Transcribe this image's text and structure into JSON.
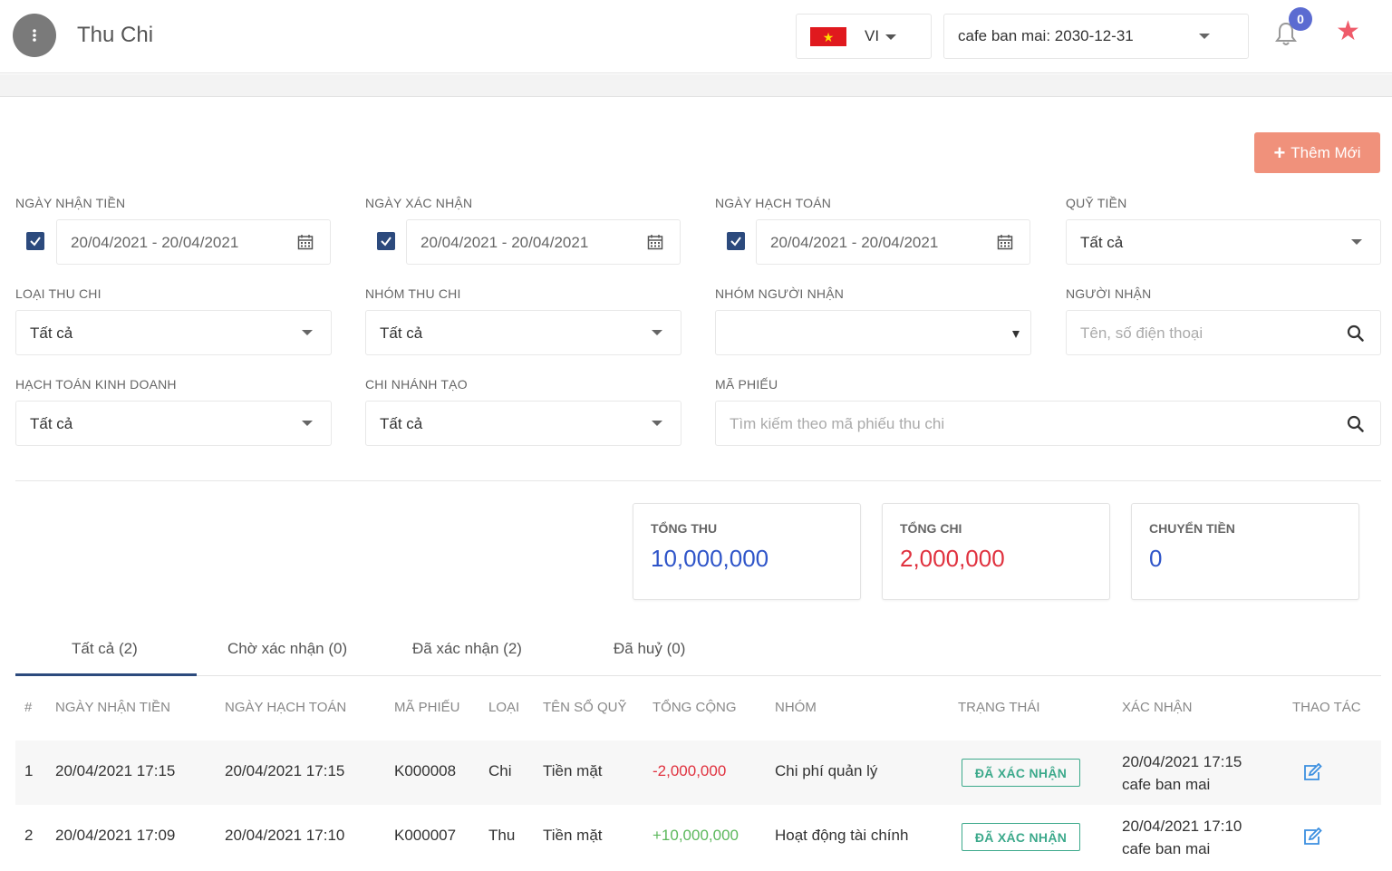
{
  "header": {
    "title": "Thu Chi",
    "lang": "VI",
    "store": "cafe ban mai: 2030-12-31",
    "notifications": "0"
  },
  "actions": {
    "add_label": "Thêm Mới"
  },
  "filters": {
    "ngay_nhan_tien": {
      "label": "NGÀY NHẬN TIỀN",
      "value": "20/04/2021 - 20/04/2021",
      "checked": true
    },
    "ngay_xac_nhan": {
      "label": "NGÀY XÁC NHẬN",
      "value": "20/04/2021 - 20/04/2021",
      "checked": true
    },
    "ngay_hach_toan": {
      "label": "NGÀY HẠCH TOÁN",
      "value": "20/04/2021 - 20/04/2021",
      "checked": true
    },
    "quy_tien": {
      "label": "QUỸ TIỀN",
      "value": "Tất cả"
    },
    "loai_thu_chi": {
      "label": "LOẠI THU CHI",
      "value": "Tất cả"
    },
    "nhom_thu_chi": {
      "label": "NHÓM THU CHI",
      "value": "Tất cả"
    },
    "nhom_nguoi_nhan": {
      "label": "NHÓM NGƯỜI NHẬN",
      "value": ""
    },
    "nguoi_nhan": {
      "label": "NGƯỜI NHẬN",
      "placeholder": "Tên, số điện thoại"
    },
    "hach_toan_kinh_doanh": {
      "label": "HẠCH TOÁN KINH DOANH",
      "value": "Tất cả"
    },
    "chi_nhanh_tao": {
      "label": "CHI NHÁNH TẠO",
      "value": "Tất cả"
    },
    "ma_phieu": {
      "label": "MÃ PHIẾU",
      "placeholder": "Tìm kiếm theo mã phiếu thu chi"
    }
  },
  "summary": {
    "tong_thu": {
      "label": "TỔNG THU",
      "value": "10,000,000",
      "color": "#2f55c9"
    },
    "tong_chi": {
      "label": "TỔNG CHI",
      "value": "2,000,000",
      "color": "#e0323f"
    },
    "chuyen_tien": {
      "label": "CHUYỂN TIỀN",
      "value": "0",
      "color": "#2f55c9"
    }
  },
  "tabs": [
    {
      "label": "Tất cả (2)",
      "active": true
    },
    {
      "label": "Chờ xác nhận (0)",
      "active": false
    },
    {
      "label": "Đã xác nhận (2)",
      "active": false
    },
    {
      "label": "Đã huỷ (0)",
      "active": false
    }
  ],
  "table": {
    "columns": [
      "#",
      "NGÀY NHẬN TIỀN",
      "NGÀY HẠCH TOÁN",
      "MÃ PHIẾU",
      "LOẠI",
      "TÊN SỔ QUỸ",
      "TỔNG CỘNG",
      "NHÓM",
      "TRẠNG THÁI",
      "XÁC NHẬN",
      "THAO TÁC"
    ],
    "rows": [
      {
        "idx": "1",
        "ngay_nhan": "20/04/2021 17:15",
        "ngay_hach_toan": "20/04/2021 17:15",
        "ma_phieu": "K000008",
        "loai": "Chi",
        "so_quy": "Tiền mặt",
        "tong": "-2,000,000",
        "tong_color": "#e0323f",
        "nhom": "Chi phí quản lý",
        "trang_thai": "ĐÃ XÁC NHẬN",
        "xac_nhan_time": "20/04/2021 17:15",
        "xac_nhan_by": "cafe ban mai"
      },
      {
        "idx": "2",
        "ngay_nhan": "20/04/2021 17:09",
        "ngay_hach_toan": "20/04/2021 17:10",
        "ma_phieu": "K000007",
        "loai": "Thu",
        "so_quy": "Tiền mặt",
        "tong": "+10,000,000",
        "tong_color": "#5cb85c",
        "nhom": "Hoạt động tài chính",
        "trang_thai": "ĐÃ XÁC NHẬN",
        "xac_nhan_time": "20/04/2021 17:10",
        "xac_nhan_by": "cafe ban mai"
      }
    ]
  }
}
